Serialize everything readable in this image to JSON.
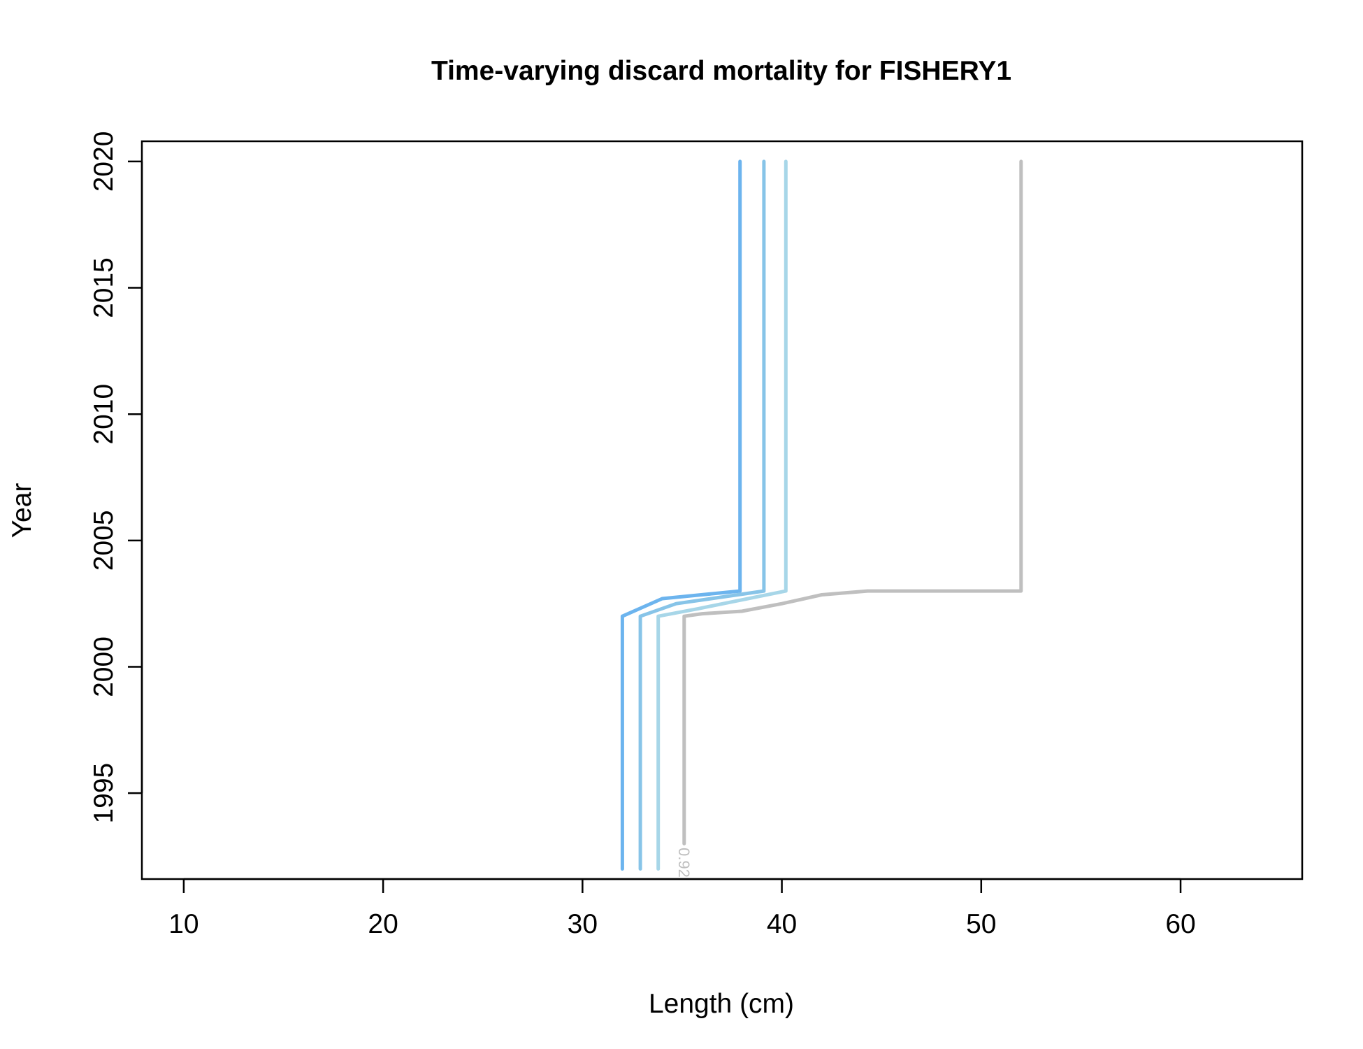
{
  "chart_data": {
    "type": "line",
    "title": "Time-varying discard mortality for FISHERY1",
    "xlabel": "Length (cm)",
    "ylabel": "Year",
    "xlim": [
      7.9,
      66.1
    ],
    "ylim": [
      1991.6,
      2020.8
    ],
    "x_ticks": [
      10,
      20,
      30,
      40,
      50,
      60
    ],
    "y_ticks": [
      1995,
      2000,
      2005,
      2010,
      2015,
      2020
    ],
    "grid": false,
    "legend": "none",
    "series": [
      {
        "color": "#6cb4ee",
        "points": [
          [
            32.0,
            1992
          ],
          [
            32.0,
            2002
          ],
          [
            34.0,
            2002.7
          ],
          [
            37.9,
            2003
          ],
          [
            37.9,
            2020
          ]
        ]
      },
      {
        "color": "#87c4e8",
        "points": [
          [
            32.9,
            1992
          ],
          [
            32.9,
            2002
          ],
          [
            34.7,
            2002.5
          ],
          [
            39.1,
            2003
          ],
          [
            39.1,
            2020
          ]
        ]
      },
      {
        "color": "#a7d6e8",
        "points": [
          [
            33.8,
            1992
          ],
          [
            33.8,
            2002
          ],
          [
            35.8,
            2002.3
          ],
          [
            40.2,
            2003
          ],
          [
            40.2,
            2020
          ]
        ]
      },
      {
        "color": "#bfbfbf",
        "points": [
          [
            35.1,
            1993
          ],
          [
            35.1,
            2002
          ],
          [
            36.0,
            2002.1
          ],
          [
            38.0,
            2002.2
          ],
          [
            40.0,
            2002.5
          ],
          [
            42.0,
            2002.85
          ],
          [
            44.3,
            2003
          ],
          [
            52.0,
            2003
          ],
          [
            52.0,
            2020
          ]
        ]
      }
    ],
    "annotations": [
      {
        "text": "0.92",
        "x": 35.1,
        "y": 1992.9,
        "color": "#bfbfbf",
        "rotation": 90
      }
    ]
  }
}
